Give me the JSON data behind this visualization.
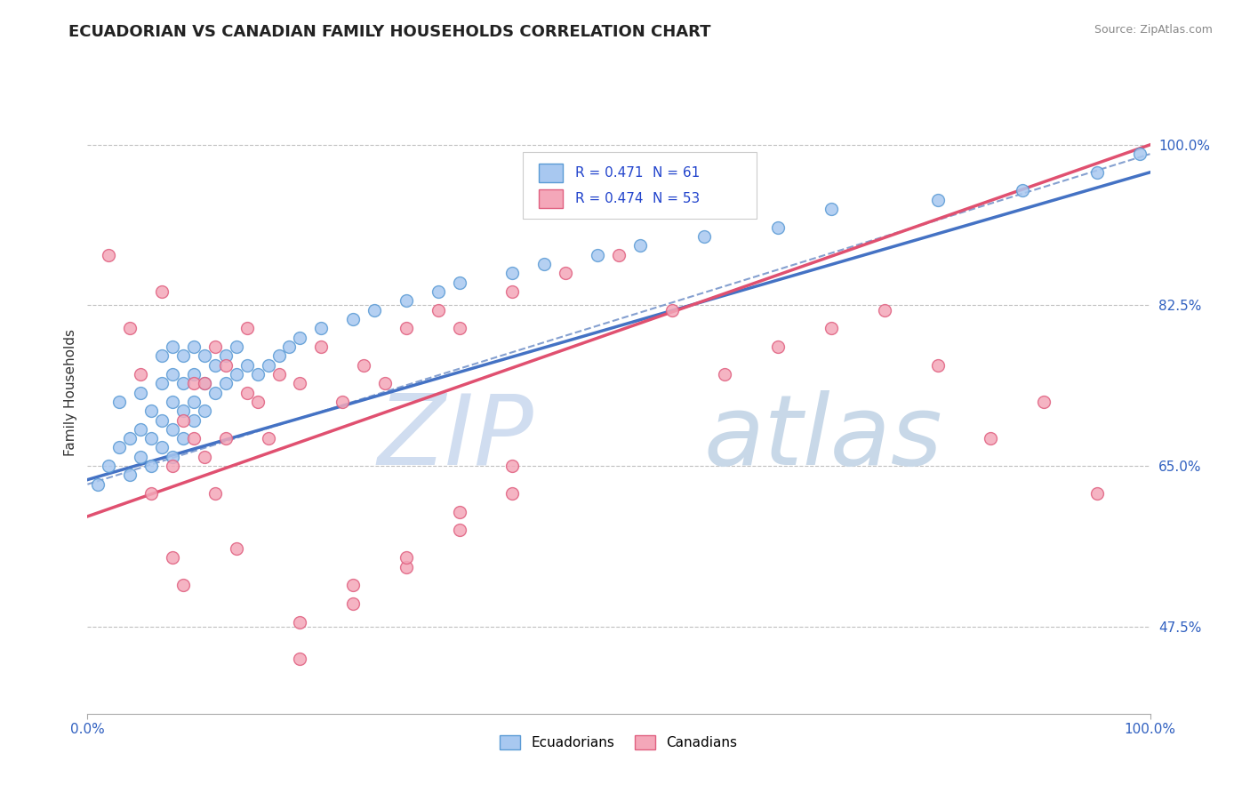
{
  "title": "ECUADORIAN VS CANADIAN FAMILY HOUSEHOLDS CORRELATION CHART",
  "source_text": "Source: ZipAtlas.com",
  "ylabel": "Family Households",
  "x_range": [
    0.0,
    100.0
  ],
  "y_range": [
    38.0,
    108.0
  ],
  "y_ticks": [
    47.5,
    65.0,
    82.5,
    100.0
  ],
  "x_ticks": [
    0.0,
    100.0
  ],
  "legend_r1": "R = 0.471",
  "legend_n1": "N = 61",
  "legend_r2": "R = 0.474",
  "legend_n2": "N = 53",
  "ecuadorian_fill": "#a8c8f0",
  "ecuadorian_edge": "#5b9bd5",
  "canadian_fill": "#f4a7b9",
  "canadian_edge": "#e06080",
  "line_blue": "#4472c4",
  "line_pink": "#e05070",
  "line_dash": "#7090c8",
  "background_color": "#ffffff",
  "ecu_x": [
    1,
    2,
    3,
    3,
    4,
    4,
    5,
    5,
    5,
    6,
    6,
    6,
    7,
    7,
    7,
    7,
    8,
    8,
    8,
    8,
    8,
    9,
    9,
    9,
    9,
    10,
    10,
    10,
    10,
    11,
    11,
    11,
    12,
    12,
    13,
    13,
    14,
    14,
    15,
    16,
    17,
    18,
    19,
    20,
    22,
    25,
    27,
    30,
    33,
    35,
    40,
    43,
    48,
    52,
    58,
    65,
    70,
    80,
    88,
    95,
    99
  ],
  "ecu_y": [
    63,
    65,
    67,
    72,
    64,
    68,
    66,
    69,
    73,
    65,
    68,
    71,
    67,
    70,
    74,
    77,
    66,
    69,
    72,
    75,
    78,
    68,
    71,
    74,
    77,
    70,
    72,
    75,
    78,
    71,
    74,
    77,
    73,
    76,
    74,
    77,
    75,
    78,
    76,
    75,
    76,
    77,
    78,
    79,
    80,
    81,
    82,
    83,
    84,
    85,
    86,
    87,
    88,
    89,
    90,
    91,
    93,
    94,
    95,
    97,
    99
  ],
  "can_x": [
    2,
    4,
    5,
    6,
    7,
    8,
    8,
    9,
    9,
    10,
    10,
    11,
    11,
    12,
    12,
    13,
    13,
    14,
    15,
    15,
    16,
    17,
    18,
    20,
    22,
    24,
    26,
    28,
    30,
    33,
    35,
    40,
    45,
    50,
    55,
    60,
    65,
    70,
    75,
    80,
    85,
    90,
    95,
    20,
    25,
    30,
    35,
    40,
    20,
    25,
    30,
    35,
    40
  ],
  "can_y": [
    88,
    80,
    75,
    62,
    84,
    65,
    55,
    70,
    52,
    68,
    74,
    66,
    74,
    62,
    78,
    68,
    76,
    56,
    73,
    80,
    72,
    68,
    75,
    74,
    78,
    72,
    76,
    74,
    80,
    82,
    80,
    84,
    86,
    88,
    82,
    75,
    78,
    80,
    82,
    76,
    68,
    72,
    62,
    48,
    52,
    54,
    58,
    62,
    44,
    50,
    55,
    60,
    65
  ]
}
